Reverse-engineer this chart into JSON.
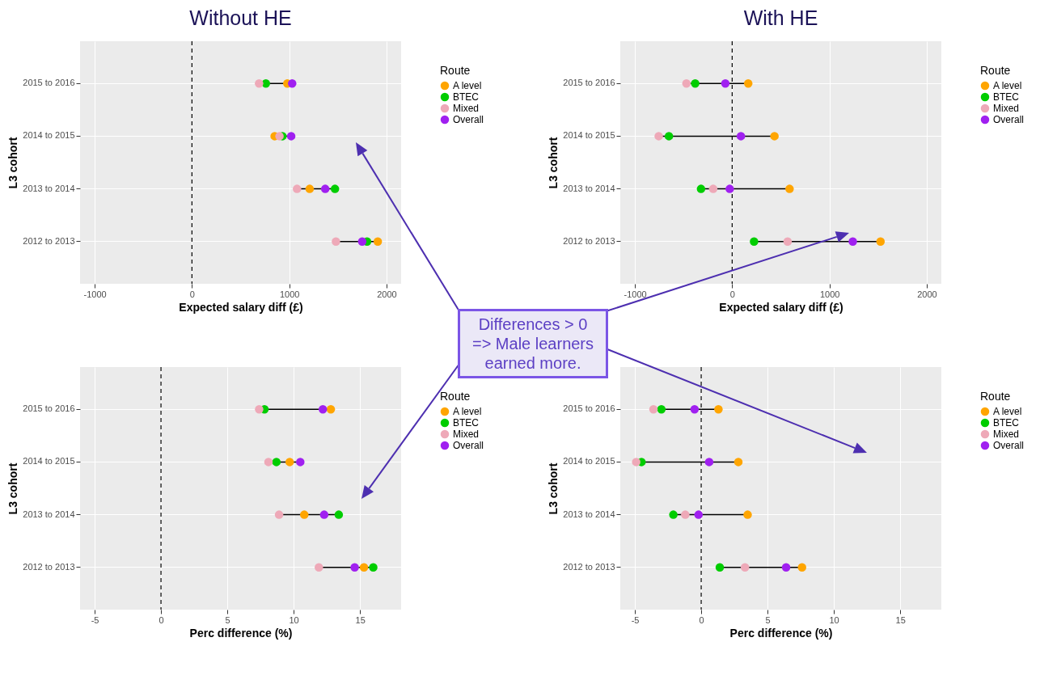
{
  "chart_data": [
    {
      "type": "scatter",
      "title": "Without HE",
      "orientation": "horizontal",
      "categories": [
        "2015 to 2016",
        "2014 to 2015",
        "2013 to 2014",
        "2012 to 2013"
      ],
      "xlabel": "Expected salary diff (£)",
      "ylabel": "L3 cohort",
      "legend_title": "Route",
      "legend": "right",
      "marker": "circle",
      "grid": true,
      "xlim": [
        -1150,
        2150
      ],
      "xticks": [
        -1000,
        0,
        1000,
        2000
      ],
      "ref_lines": [
        {
          "axis": "x",
          "value": 0,
          "line_style": "dashed"
        }
      ],
      "series": [
        {
          "name": "A level",
          "color": "#ffa500",
          "values": [
            980,
            850,
            1210,
            1910
          ]
        },
        {
          "name": "BTEC",
          "color": "#00cd00",
          "values": [
            760,
            930,
            1470,
            1800
          ]
        },
        {
          "name": "Mixed",
          "color": "#eea9b8",
          "values": [
            690,
            900,
            1080,
            1480
          ]
        },
        {
          "name": "Overall",
          "color": "#a020f0",
          "values": [
            1030,
            1020,
            1370,
            1750
          ]
        }
      ]
    },
    {
      "type": "scatter",
      "title": "With HE",
      "orientation": "horizontal",
      "categories": [
        "2015 to 2016",
        "2014 to 2015",
        "2013 to 2014",
        "2012 to 2013"
      ],
      "xlabel": "Expected salary diff (£)",
      "ylabel": "L3 cohort",
      "legend_title": "Route",
      "legend": "right",
      "marker": "circle",
      "grid": true,
      "xlim": [
        -1150,
        2150
      ],
      "xticks": [
        -1000,
        0,
        1000,
        2000
      ],
      "ref_lines": [
        {
          "axis": "x",
          "value": 0,
          "line_style": "dashed"
        }
      ],
      "series": [
        {
          "name": "A level",
          "color": "#ffa500",
          "values": [
            165,
            435,
            590,
            1525
          ]
        },
        {
          "name": "BTEC",
          "color": "#00cd00",
          "values": [
            -380,
            -650,
            -320,
            225
          ]
        },
        {
          "name": "Mixed",
          "color": "#eea9b8",
          "values": [
            -470,
            -755,
            -195,
            570
          ]
        },
        {
          "name": "Overall",
          "color": "#a020f0",
          "values": [
            -70,
            90,
            -25,
            1240
          ]
        }
      ]
    },
    {
      "type": "scatter",
      "orientation": "horizontal",
      "categories": [
        "2015 to 2016",
        "2014 to 2015",
        "2013 to 2014",
        "2012 to 2013"
      ],
      "xlabel": "Perc difference (%)",
      "ylabel": "L3 cohort",
      "legend_title": "Route",
      "legend": "right",
      "marker": "circle",
      "grid": true,
      "xlim": [
        -6.1,
        18.1
      ],
      "xticks": [
        -5,
        0,
        5,
        10,
        15
      ],
      "ref_lines": [
        {
          "axis": "x",
          "value": 0,
          "line_style": "dashed"
        }
      ],
      "series": [
        {
          "name": "A level",
          "color": "#ffa500",
          "values": [
            12.8,
            9.7,
            10.8,
            15.3
          ]
        },
        {
          "name": "BTEC",
          "color": "#00cd00",
          "values": [
            7.8,
            8.7,
            13.4,
            16.0
          ]
        },
        {
          "name": "Mixed",
          "color": "#eea9b8",
          "values": [
            7.4,
            8.1,
            8.9,
            11.9
          ]
        },
        {
          "name": "Overall",
          "color": "#a020f0",
          "values": [
            12.2,
            10.5,
            12.3,
            14.6
          ]
        }
      ]
    },
    {
      "type": "scatter",
      "orientation": "horizontal",
      "categories": [
        "2015 to 2016",
        "2014 to 2015",
        "2013 to 2014",
        "2012 to 2013"
      ],
      "xlabel": "Perc difference (%)",
      "ylabel": "L3 cohort",
      "legend_title": "Route",
      "legend": "right",
      "marker": "circle",
      "grid": true,
      "xlim": [
        -6.1,
        18.1
      ],
      "xticks": [
        -5,
        0,
        5,
        10,
        15
      ],
      "ref_lines": [
        {
          "axis": "x",
          "value": 0,
          "line_style": "dashed"
        }
      ],
      "series": [
        {
          "name": "A level",
          "color": "#ffa500",
          "values": [
            1.3,
            2.8,
            3.5,
            7.6
          ]
        },
        {
          "name": "BTEC",
          "color": "#00cd00",
          "values": [
            -3.0,
            -4.5,
            -2.1,
            1.4
          ]
        },
        {
          "name": "Mixed",
          "color": "#eea9b8",
          "values": [
            -3.6,
            -4.9,
            -1.2,
            3.3
          ]
        },
        {
          "name": "Overall",
          "color": "#a020f0",
          "values": [
            -0.5,
            0.6,
            -0.2,
            6.4
          ]
        }
      ]
    },
    {
      "type": "other",
      "annotations": [
        "Differences > 0\n=> Male learners\nearned more."
      ]
    }
  ]
}
